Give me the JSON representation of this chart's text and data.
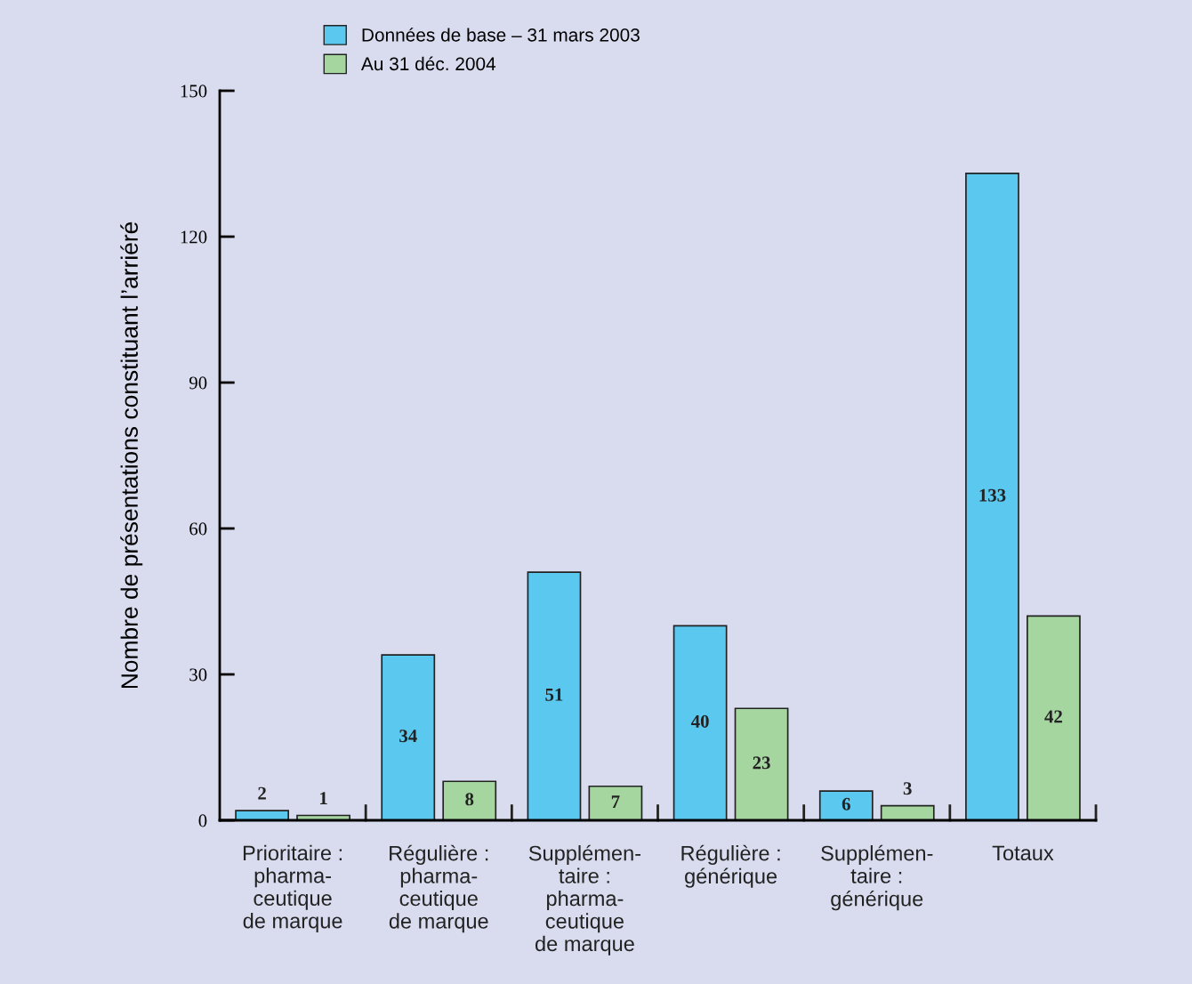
{
  "chart_data": {
    "type": "bar",
    "ylabel": "Nombre de présentations constituant l’arriéré",
    "categories": [
      "Prioritaire :\npharma-\nceutique\nde marque",
      "Régulière :\npharma-\nceutique\nde marque",
      "Supplémen-\ntaire :\npharma-\nceutique\nde marque",
      "Régulière :\ngénérique",
      "Supplémen-\ntaire :\ngénérique",
      "Totaux"
    ],
    "series": [
      {
        "name": "Données de base – 31 mars 2003",
        "color": "#5bc8f0",
        "values": [
          2,
          34,
          51,
          40,
          6,
          133
        ]
      },
      {
        "name": "Au 31 déc. 2004",
        "color": "#a6d6a0",
        "values": [
          1,
          8,
          7,
          23,
          3,
          42
        ]
      }
    ],
    "ylim": [
      0,
      150
    ],
    "yticks": [
      0,
      30,
      60,
      90,
      120,
      150
    ],
    "data_labels": true,
    "legend": "top left",
    "grid": false
  }
}
